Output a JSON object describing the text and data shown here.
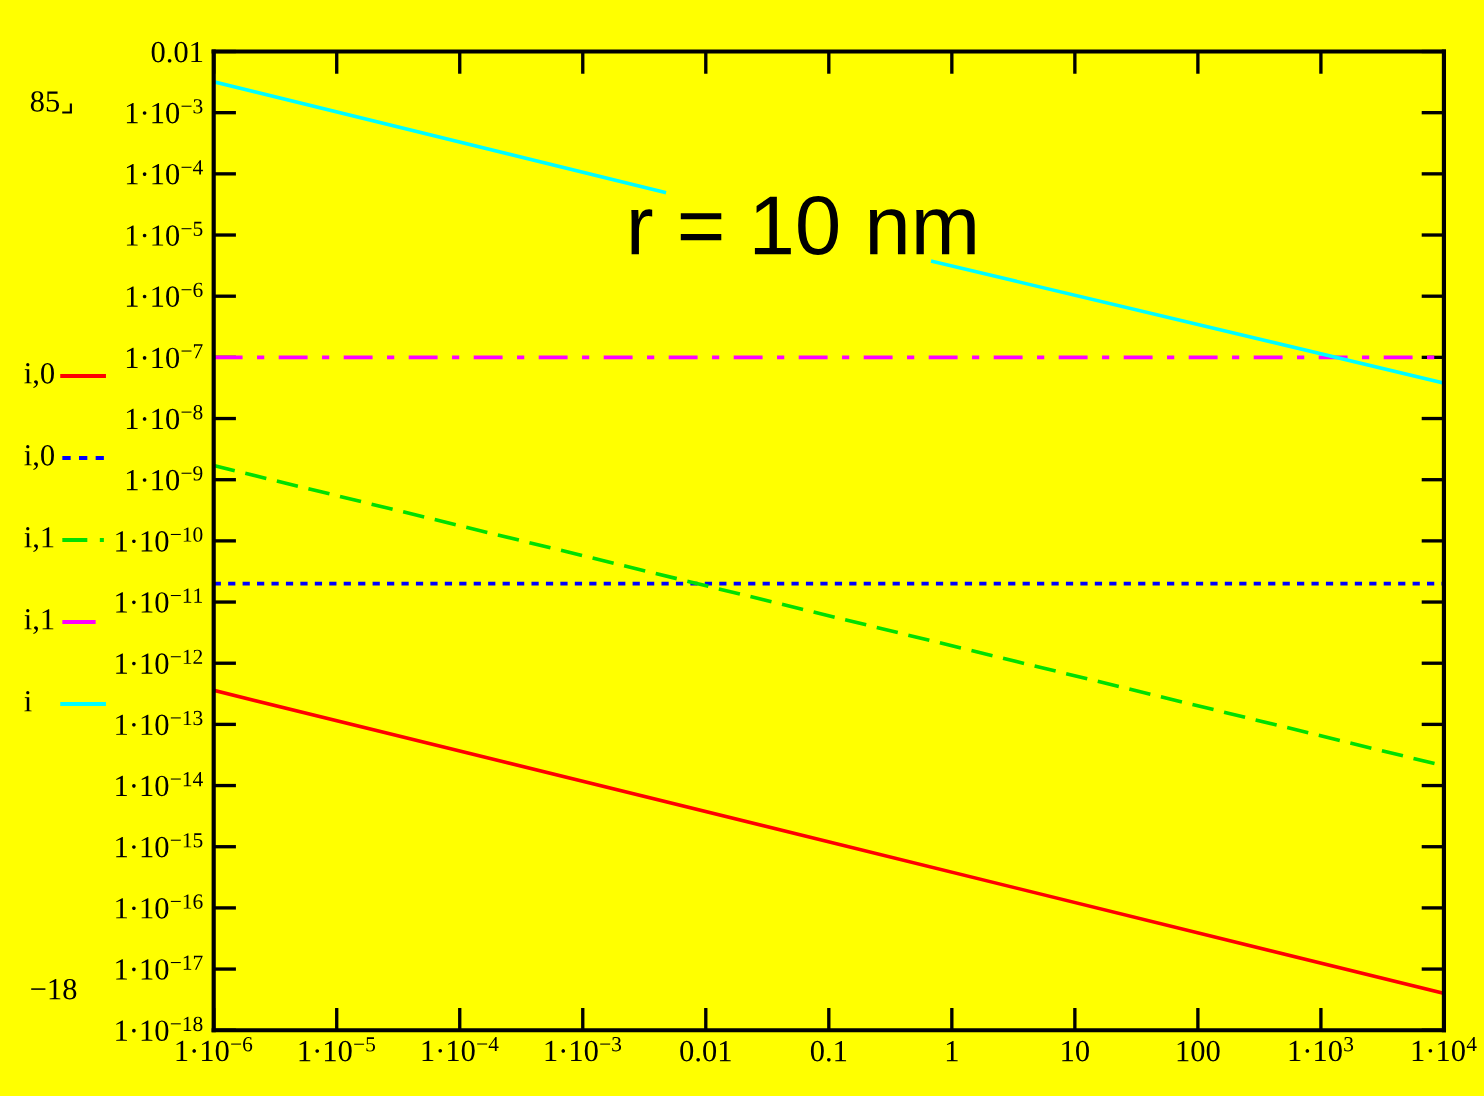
{
  "chart_data": {
    "type": "line",
    "log": "xy",
    "annotations": [
      "r = 10 nm",
      "85⌟",
      "−18"
    ],
    "xlim": [
      1e-06,
      10000
    ],
    "xticks": [
      {
        "value": 1e-06,
        "label": "1·10$^{−6}$"
      },
      {
        "value": 1e-05,
        "label": "1·10$^{−5}$"
      },
      {
        "value": 0.0001,
        "label": "1·10$^{−4}$"
      },
      {
        "value": 0.001,
        "label": "1·10$^{−3}$"
      },
      0.01,
      0.1,
      1,
      10,
      100,
      {
        "value": 1000,
        "label": "1·10$^{3}$"
      },
      {
        "value": 10000,
        "label": "1·10$^{4}$"
      }
    ],
    "ylim": [
      1e-18,
      0.01
    ],
    "yticks": [
      0.01,
      {
        "value": 0.001,
        "label": "1·10$^{−3}$"
      },
      {
        "value": 0.0001,
        "label": "1·10$^{−4}$"
      },
      {
        "value": 1e-05,
        "label": "1·10$^{−5}$"
      },
      {
        "value": 1e-06,
        "label": "1·10$^{−6}$"
      },
      {
        "value": 1e-07,
        "label": "1·10$^{−7}$"
      },
      {
        "value": 1e-08,
        "label": "1·10$^{−8}$"
      },
      {
        "value": 1e-09,
        "label": "1·10$^{−9}$"
      },
      {
        "value": 1e-10,
        "label": "1·10$^{−10}$"
      },
      {
        "value": 1e-11,
        "label": "1·10$^{−11}$"
      },
      {
        "value": 1e-12,
        "label": "1·10$^{−12}$"
      },
      {
        "value": 1e-13,
        "label": "1·10$^{−13}$"
      },
      {
        "value": 1e-14,
        "label": "1·10$^{−14}$"
      },
      {
        "value": 1e-15,
        "label": "1·10$^{−15}$"
      },
      {
        "value": 1e-16,
        "label": "1·10$^{−16}$"
      },
      {
        "value": 1e-17,
        "label": "1·10$^{−17}$"
      },
      {
        "value": 1e-18,
        "label": "1·10$^{−18}$"
      }
    ],
    "grid": false,
    "legend": "left",
    "marker": "none",
    "series": [
      {
        "name": "i,0",
        "color": "#ff0000",
        "line_style": "solid",
        "x": [
          1e-06,
          10000
        ],
        "values": [
          3.6e-13,
          4e-18
        ]
      },
      {
        "name": "i,0",
        "color": "#0000ff",
        "line_style": "dotted",
        "x": [
          1e-06,
          10000
        ],
        "values": [
          2e-11,
          2e-11
        ]
      },
      {
        "name": "i,1",
        "color": "#00e000",
        "line_style": "dashed",
        "x": [
          1e-06,
          10000
        ],
        "values": [
          1.7e-09,
          2.1e-14
        ]
      },
      {
        "name": "i,1",
        "color": "#ff00ff",
        "line_style": "dashdot",
        "x": [
          1e-06,
          10000
        ],
        "values": [
          1e-07,
          1e-07
        ]
      },
      {
        "name": "i",
        "color": "#00ffff",
        "line_style": "solid",
        "x": [
          1e-06,
          0.0046,
          0.05,
          0.7,
          10000
        ],
        "values": [
          0.0032,
          5e-05,
          null,
          3.7e-06,
          3.8e-08
        ]
      }
    ]
  }
}
